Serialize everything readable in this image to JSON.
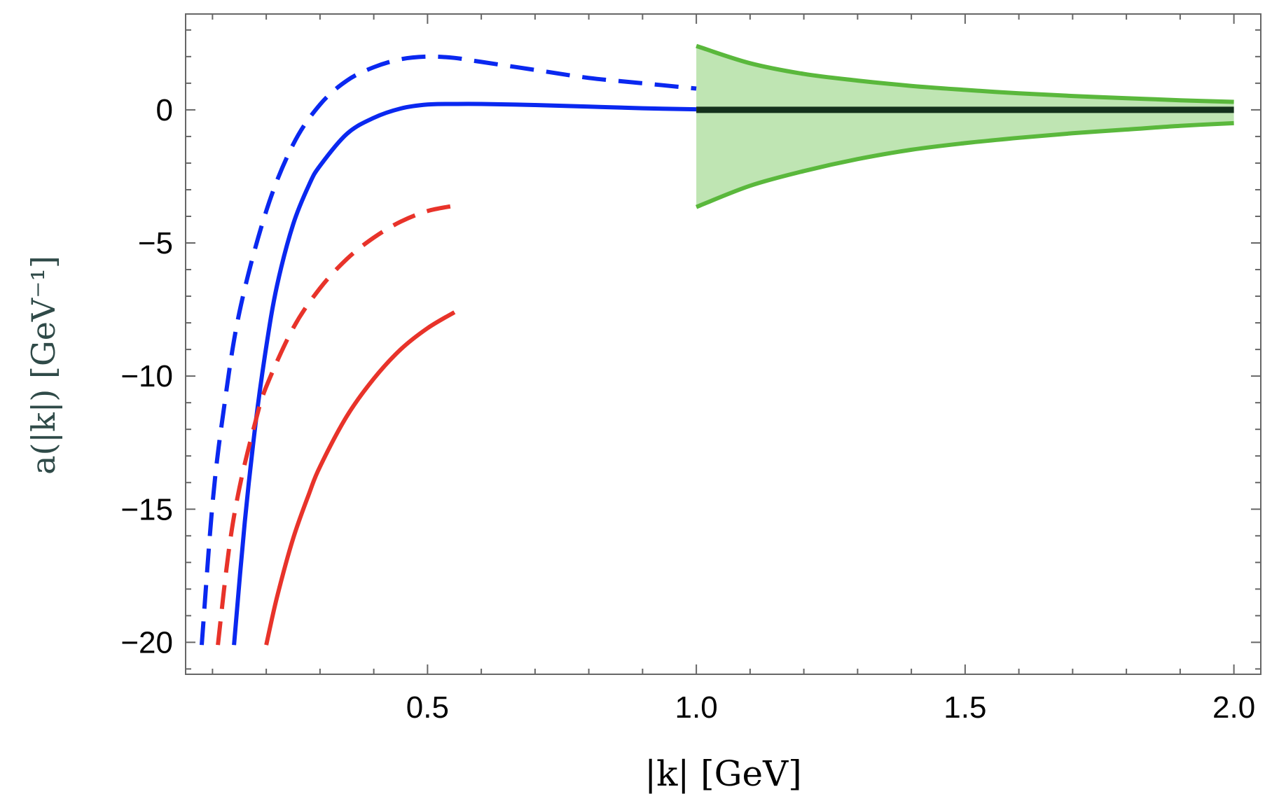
{
  "chart_data": {
    "type": "line",
    "xlabel": "|k|   [GeV]",
    "ylabel": "a(|k|)   [GeV⁻¹]",
    "xlim": [
      0.05,
      2.05
    ],
    "ylim": [
      -21.2,
      3.6
    ],
    "x_ticks": [
      0.5,
      1.0,
      1.5,
      2.0
    ],
    "x_tick_labels": [
      "0.5",
      "1.0",
      "1.5",
      "2.0"
    ],
    "y_ticks": [
      0,
      -5,
      -10,
      -15,
      -20
    ],
    "y_tick_labels": [
      "0",
      "−5",
      "−10",
      "−15",
      "−20"
    ],
    "x_minor_step": 0.1,
    "y_minor_step": 1,
    "grid": false,
    "colors": {
      "blue": "#0a28f0",
      "red": "#e8332a",
      "green": "#5ab83c",
      "band_fill": "#bfe5b3",
      "black": "#14301c"
    },
    "series": [
      {
        "name": "blue-dashed",
        "style": "dashed",
        "color": "blue",
        "x": [
          0.08,
          0.1,
          0.12,
          0.15,
          0.2,
          0.25,
          0.3,
          0.35,
          0.4,
          0.45,
          0.5,
          0.55,
          0.6,
          0.7,
          0.8,
          0.9,
          1.0
        ],
        "y": [
          -20.1,
          -14.8,
          -11.4,
          -7.6,
          -3.8,
          -1.3,
          0.2,
          1.1,
          1.6,
          1.9,
          2.0,
          1.95,
          1.8,
          1.5,
          1.2,
          1.0,
          0.8
        ]
      },
      {
        "name": "blue-solid",
        "style": "solid",
        "color": "blue",
        "x": [
          0.14,
          0.16,
          0.18,
          0.2,
          0.22,
          0.25,
          0.28,
          0.3,
          0.35,
          0.4,
          0.45,
          0.5,
          0.55,
          0.6,
          0.7,
          0.8,
          0.9,
          1.0
        ],
        "y": [
          -20.1,
          -15.5,
          -11.8,
          -8.9,
          -6.6,
          -4.3,
          -2.8,
          -2.1,
          -0.9,
          -0.3,
          0.05,
          0.2,
          0.22,
          0.22,
          0.18,
          0.12,
          0.06,
          0.02
        ]
      },
      {
        "name": "red-dashed",
        "style": "dashed",
        "color": "red",
        "x": [
          0.11,
          0.13,
          0.15,
          0.18,
          0.2,
          0.25,
          0.3,
          0.35,
          0.4,
          0.45,
          0.5,
          0.55
        ],
        "y": [
          -20.1,
          -16.6,
          -14.2,
          -11.7,
          -10.4,
          -8.2,
          -6.7,
          -5.6,
          -4.8,
          -4.2,
          -3.8,
          -3.6
        ]
      },
      {
        "name": "red-solid",
        "style": "solid",
        "color": "red",
        "x": [
          0.2,
          0.22,
          0.25,
          0.28,
          0.3,
          0.35,
          0.4,
          0.45,
          0.5,
          0.55
        ],
        "y": [
          -20.1,
          -18.3,
          -16.1,
          -14.4,
          -13.4,
          -11.5,
          -10.1,
          -9.0,
          -8.2,
          -7.6
        ]
      },
      {
        "name": "green-upper",
        "style": "solid",
        "color": "green",
        "x": [
          1.0,
          1.1,
          1.2,
          1.3,
          1.4,
          1.5,
          1.6,
          1.7,
          1.8,
          1.9,
          2.0
        ],
        "y": [
          2.4,
          1.75,
          1.35,
          1.1,
          0.9,
          0.75,
          0.62,
          0.52,
          0.44,
          0.36,
          0.3
        ]
      },
      {
        "name": "green-lower",
        "style": "solid",
        "color": "green",
        "x": [
          1.0,
          1.1,
          1.2,
          1.3,
          1.4,
          1.5,
          1.6,
          1.7,
          1.8,
          1.9,
          2.0
        ],
        "y": [
          -3.65,
          -2.85,
          -2.3,
          -1.85,
          -1.5,
          -1.25,
          -1.05,
          -0.88,
          -0.74,
          -0.6,
          -0.5
        ]
      },
      {
        "name": "black-central",
        "style": "solid",
        "color": "black",
        "x": [
          1.0,
          1.25,
          1.5,
          1.75,
          2.0
        ],
        "y": [
          0.0,
          0.0,
          0.0,
          0.0,
          0.0
        ]
      }
    ],
    "band": {
      "name": "green-band",
      "upper": "green-upper",
      "lower": "green-lower",
      "color": "band_fill"
    }
  }
}
